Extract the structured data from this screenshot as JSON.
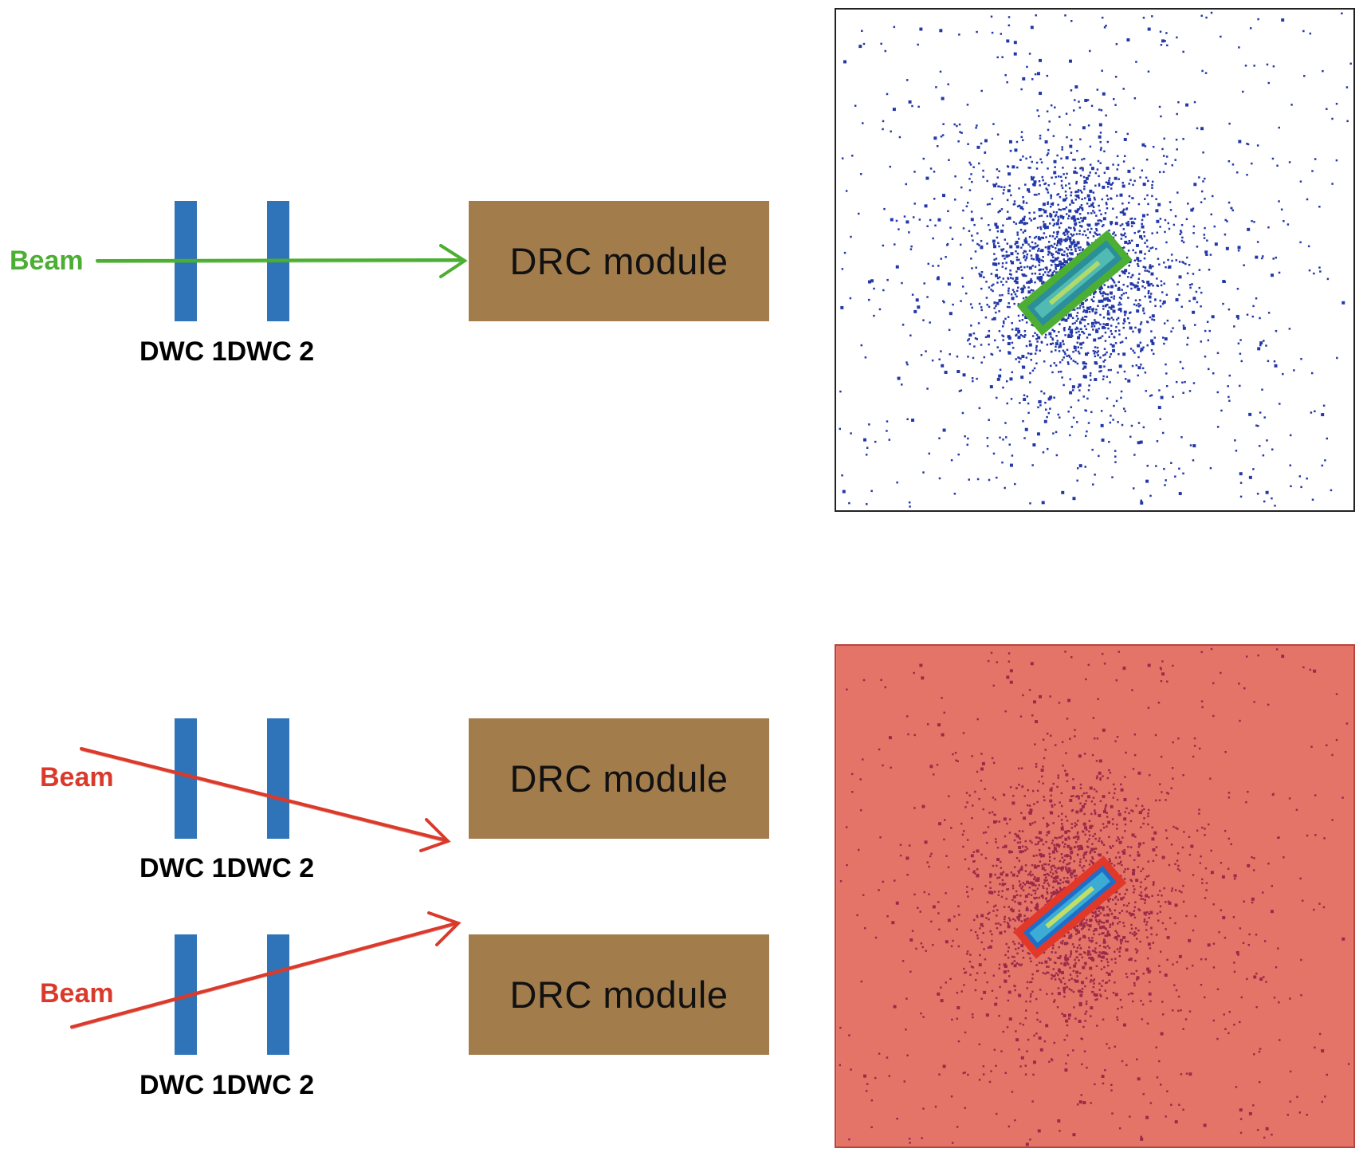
{
  "colors": {
    "good_beam": "#4cae32",
    "bad_beam": "#d93a2b",
    "dwc": "#2f74b8",
    "drc_module": "#a37c4c",
    "bad_background": "#e57468",
    "hit_blue": "#2338a8"
  },
  "top": {
    "beam_label": "Beam",
    "dwc1_label": "DWC 1",
    "dwc2_label": "DWC 2",
    "drc_label": "DRC module"
  },
  "bottom": {
    "row1": {
      "beam_label": "Beam",
      "dwc1_label": "DWC 1",
      "dwc2_label": "DWC 2",
      "drc_label": "DRC module"
    },
    "row2": {
      "beam_label": "Beam",
      "dwc1_label": "DWC 1",
      "dwc2_label": "DWC 2",
      "drc_label": "DRC module"
    }
  },
  "plots": {
    "top": {
      "highlight_box": "good_beam",
      "background": "white",
      "icon": "hitmap-good"
    },
    "bottom": {
      "highlight_box": "bad_beam",
      "background": "bad_background",
      "icon": "hitmap-bad"
    }
  }
}
